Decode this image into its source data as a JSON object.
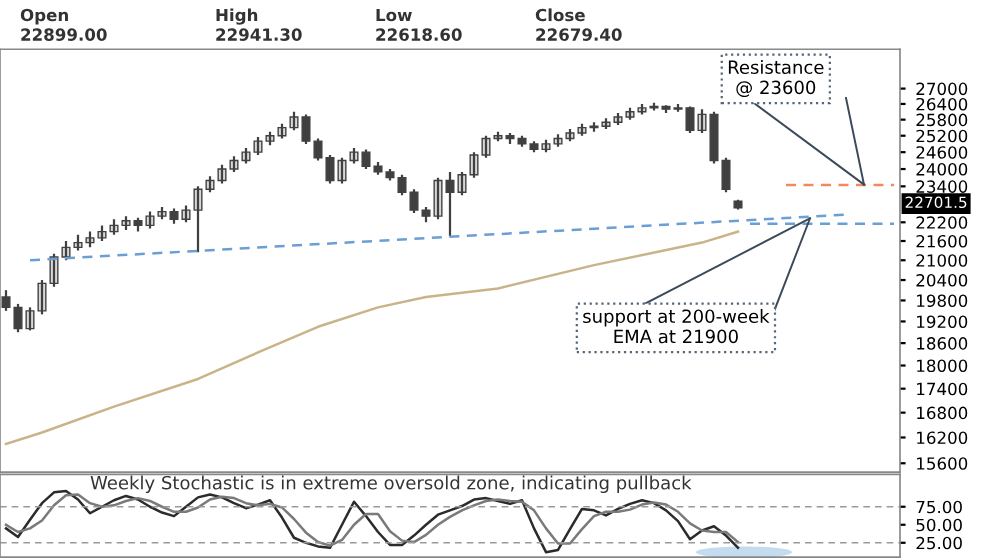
{
  "chart_data": [
    {
      "type": "candlestick",
      "color": "#404040",
      "log": true,
      "grid": false,
      "tick_labels": "y",
      "categories": [
        null,
        null,
        null,
        null,
        null,
        null,
        null,
        null,
        null,
        null,
        null,
        null,
        null,
        null,
        null,
        null,
        null,
        null,
        null,
        null,
        null,
        null,
        null,
        null,
        null,
        null,
        null,
        null,
        null,
        null,
        null,
        null,
        null,
        null,
        null,
        null,
        null,
        null,
        null,
        null,
        null,
        null,
        null,
        null,
        null,
        null,
        null,
        null,
        null,
        null,
        null,
        null,
        null,
        null,
        null,
        null,
        null,
        null,
        null,
        null,
        null,
        null,
        null,
        null,
        null,
        null,
        null,
        null,
        null,
        null,
        null,
        null,
        null,
        null,
        null
      ],
      "ohlc": [
        [
          19900,
          20100,
          19500,
          19600
        ],
        [
          19600,
          19700,
          18900,
          19000
        ],
        [
          19000,
          19600,
          18950,
          19500
        ],
        [
          19500,
          20400,
          19400,
          20300
        ],
        [
          20300,
          21200,
          20200,
          21100
        ],
        [
          21100,
          21600,
          21000,
          21400
        ],
        [
          21400,
          21800,
          21300,
          21550
        ],
        [
          21550,
          21900,
          21400,
          21700
        ],
        [
          21700,
          22100,
          21600,
          21900
        ],
        [
          21900,
          22300,
          21800,
          22100
        ],
        [
          22100,
          22400,
          21950,
          22250
        ],
        [
          22250,
          22350,
          21900,
          22100
        ],
        [
          22100,
          22550,
          22000,
          22400
        ],
        [
          22400,
          22700,
          22300,
          22550
        ],
        [
          22550,
          22650,
          22150,
          22300
        ],
        [
          22300,
          22750,
          22200,
          22600
        ],
        [
          22600,
          23400,
          21250,
          23300
        ],
        [
          23300,
          23750,
          23200,
          23600
        ],
        [
          23600,
          24150,
          23500,
          24000
        ],
        [
          24000,
          24450,
          23900,
          24300
        ],
        [
          24300,
          24750,
          24200,
          24600
        ],
        [
          24600,
          25150,
          24500,
          25000
        ],
        [
          25000,
          25350,
          24850,
          25200
        ],
        [
          25200,
          25650,
          25100,
          25500
        ],
        [
          25500,
          26100,
          25400,
          25900
        ],
        [
          25900,
          26000,
          24900,
          25000
        ],
        [
          25000,
          25100,
          24300,
          24400
        ],
        [
          24400,
          24500,
          23500,
          23600
        ],
        [
          23600,
          24400,
          23500,
          24300
        ],
        [
          24300,
          24750,
          24200,
          24600
        ],
        [
          24600,
          24700,
          24000,
          24100
        ],
        [
          24100,
          24250,
          23800,
          23900
        ],
        [
          23900,
          24000,
          23600,
          23700
        ],
        [
          23700,
          23800,
          23100,
          23200
        ],
        [
          23200,
          23300,
          22500,
          22600
        ],
        [
          22600,
          22700,
          22200,
          22400
        ],
        [
          22400,
          23700,
          22300,
          23600
        ],
        [
          23600,
          23900,
          21750,
          23200
        ],
        [
          23200,
          23900,
          23100,
          23800
        ],
        [
          23800,
          24600,
          23700,
          24500
        ],
        [
          24500,
          25200,
          24400,
          25100
        ],
        [
          25100,
          25350,
          25000,
          25200
        ],
        [
          25200,
          25300,
          24900,
          25100
        ],
        [
          25100,
          25200,
          24800,
          24900
        ],
        [
          24900,
          25000,
          24600,
          24700
        ],
        [
          24700,
          25050,
          24600,
          24900
        ],
        [
          24900,
          25250,
          24800,
          25100
        ],
        [
          25100,
          25450,
          25000,
          25300
        ],
        [
          25300,
          25650,
          25200,
          25500
        ],
        [
          25500,
          25700,
          25350,
          25550
        ],
        [
          25550,
          25850,
          25450,
          25700
        ],
        [
          25700,
          26050,
          25600,
          25900
        ],
        [
          25900,
          26250,
          25800,
          26100
        ],
        [
          26100,
          26400,
          26000,
          26250
        ],
        [
          26250,
          26450,
          26150,
          26300
        ],
        [
          26300,
          26350,
          26050,
          26200
        ],
        [
          26200,
          26400,
          26100,
          26250
        ],
        [
          26250,
          26300,
          25300,
          25400
        ],
        [
          25400,
          26200,
          25300,
          26000
        ],
        [
          26000,
          26100,
          24200,
          24300
        ],
        [
          24300,
          24400,
          23200,
          23300
        ],
        [
          22899.0,
          22941.3,
          22618.6,
          22679.4
        ],
        null,
        null,
        null,
        null,
        null,
        null,
        null,
        null,
        null,
        null,
        null,
        null,
        null
      ],
      "series": [
        {
          "type": "line",
          "color": "#c9b48a",
          "line_style": "solid",
          "values": [
            16050,
            null,
            null,
            16320,
            null,
            null,
            null,
            null,
            null,
            16950,
            null,
            null,
            null,
            null,
            null,
            null,
            17650,
            null,
            null,
            null,
            null,
            18350,
            null,
            null,
            null,
            null,
            19050,
            null,
            null,
            null,
            null,
            19600,
            null,
            null,
            null,
            19900,
            null,
            null,
            null,
            null,
            null,
            20150,
            null,
            null,
            null,
            null,
            null,
            null,
            null,
            20850,
            null,
            null,
            null,
            null,
            null,
            null,
            null,
            null,
            21550,
            null,
            null,
            21900,
            null,
            null,
            null,
            null,
            null,
            null,
            null,
            null,
            null,
            null,
            null,
            null,
            null
          ]
        },
        {
          "type": "line",
          "color": "#6a9fd4",
          "line_style": "dashed",
          "values": [
            null,
            null,
            21000,
            null,
            null,
            null,
            null,
            null,
            null,
            null,
            null,
            null,
            null,
            null,
            null,
            null,
            null,
            null,
            null,
            null,
            null,
            null,
            null,
            null,
            null,
            null,
            null,
            null,
            null,
            null,
            null,
            null,
            null,
            null,
            null,
            null,
            null,
            null,
            null,
            null,
            null,
            null,
            null,
            null,
            null,
            null,
            null,
            null,
            null,
            null,
            null,
            null,
            null,
            null,
            null,
            null,
            null,
            null,
            null,
            null,
            null,
            null,
            null,
            null,
            null,
            null,
            null,
            null,
            null,
            null,
            22450,
            null,
            null,
            null,
            null
          ]
        },
        {
          "type": "line",
          "color": "#6a9fd4",
          "line_style": "dashed",
          "values": [
            null,
            null,
            null,
            null,
            null,
            null,
            null,
            null,
            null,
            null,
            null,
            null,
            null,
            null,
            null,
            null,
            null,
            null,
            null,
            null,
            null,
            null,
            null,
            null,
            null,
            null,
            null,
            null,
            null,
            null,
            null,
            null,
            null,
            null,
            null,
            null,
            null,
            null,
            null,
            null,
            null,
            null,
            null,
            null,
            null,
            null,
            null,
            null,
            null,
            null,
            null,
            null,
            null,
            null,
            null,
            null,
            null,
            null,
            null,
            null,
            null,
            null,
            22150,
            null,
            null,
            null,
            null,
            null,
            null,
            null,
            null,
            null,
            null,
            null,
            22150
          ]
        },
        {
          "type": "line",
          "color": "#f08a5d",
          "line_style": "dashed",
          "values": [
            null,
            null,
            null,
            null,
            null,
            null,
            null,
            null,
            null,
            null,
            null,
            null,
            null,
            null,
            null,
            null,
            null,
            null,
            null,
            null,
            null,
            null,
            null,
            null,
            null,
            null,
            null,
            null,
            null,
            null,
            null,
            null,
            null,
            null,
            null,
            null,
            null,
            null,
            null,
            null,
            null,
            null,
            null,
            null,
            null,
            null,
            null,
            null,
            null,
            null,
            null,
            null,
            null,
            null,
            null,
            null,
            null,
            null,
            null,
            null,
            null,
            null,
            null,
            null,
            null,
            23450,
            null,
            null,
            null,
            null,
            null,
            null,
            null,
            null,
            23450
          ]
        }
      ],
      "ylim": [
        15400,
        28600
      ],
      "yticks": [
        15600,
        16200,
        16800,
        17400,
        18000,
        18600,
        19200,
        19800,
        20400,
        21000,
        21600,
        22200,
        23400,
        24000,
        24600,
        25200,
        25800,
        26400,
        27000
      ],
      "annotations": [
        "Open",
        "High",
        "Low",
        "Close",
        "22899.00",
        "22941.30",
        "22618.60",
        "22679.40",
        "Resistance\n@ 23600",
        "support at 200-week\nEMA at 21900",
        "22701.5"
      ]
    },
    {
      "type": "line",
      "title": "Weekly Stochastic is in extreme oversold zone, indicating pullback",
      "grid": false,
      "tick_labels": "y",
      "marker": "none",
      "categories": [
        null,
        null,
        null,
        null,
        null,
        null,
        null,
        null,
        null,
        null,
        null,
        null,
        null,
        null,
        null,
        null,
        null,
        null,
        null,
        null,
        null,
        null,
        null,
        null,
        null,
        null,
        null,
        null,
        null,
        null,
        null,
        null,
        null,
        null,
        null,
        null,
        null,
        null,
        null,
        null,
        null,
        null,
        null,
        null,
        null,
        null,
        null,
        null,
        null,
        null,
        null,
        null,
        null,
        null,
        null,
        null,
        null,
        null,
        null,
        null,
        null,
        null,
        null,
        null,
        null,
        null,
        null,
        null,
        null,
        null,
        null,
        null,
        null,
        null,
        null
      ],
      "series": [
        {
          "color": "#2b2b2b",
          "line_style": "solid",
          "values": [
            45,
            33,
            57,
            80,
            95,
            97,
            85,
            66,
            75,
            84,
            90,
            85,
            75,
            67,
            62,
            75,
            88,
            92,
            88,
            80,
            73,
            78,
            84,
            60,
            32,
            25,
            20,
            18,
            50,
            82,
            62,
            40,
            22,
            22,
            35,
            50,
            64,
            70,
            76,
            85,
            87,
            83,
            79,
            84,
            45,
            12,
            15,
            44,
            72,
            70,
            63,
            72,
            79,
            84,
            80,
            70,
            55,
            30,
            42,
            48,
            35,
            18,
            null,
            null,
            null,
            null,
            null,
            null,
            null,
            null,
            null,
            null,
            null,
            null,
            null
          ]
        },
        {
          "color": "#7a7a7a",
          "line_style": "solid",
          "values": [
            50,
            40,
            45,
            56,
            77,
            91,
            92,
            80,
            75,
            77,
            83,
            87,
            83,
            75,
            68,
            68,
            74,
            85,
            89,
            87,
            80,
            77,
            79,
            74,
            58,
            39,
            26,
            21,
            29,
            50,
            65,
            65,
            41,
            28,
            26,
            36,
            50,
            61,
            70,
            77,
            83,
            85,
            83,
            82,
            70,
            45,
            24,
            24,
            44,
            62,
            68,
            68,
            71,
            78,
            81,
            78,
            68,
            52,
            42,
            40,
            40,
            26,
            null,
            null,
            null,
            null,
            null,
            null,
            null,
            null,
            null,
            null,
            null,
            null,
            null
          ]
        }
      ],
      "ylim": [
        5,
        120
      ],
      "yticks": [
        {
          "value": 25,
          "label": "25.00"
        },
        {
          "value": 50,
          "label": "50.00"
        },
        {
          "value": 75,
          "label": "75.00"
        }
      ],
      "ref_lines": [
        {
          "axis": "y",
          "value": 75,
          "color": "#9a9a9a",
          "line_style": "dashed"
        },
        {
          "axis": "y",
          "value": 25,
          "color": "#9a9a9a",
          "line_style": "dashed"
        }
      ]
    }
  ]
}
